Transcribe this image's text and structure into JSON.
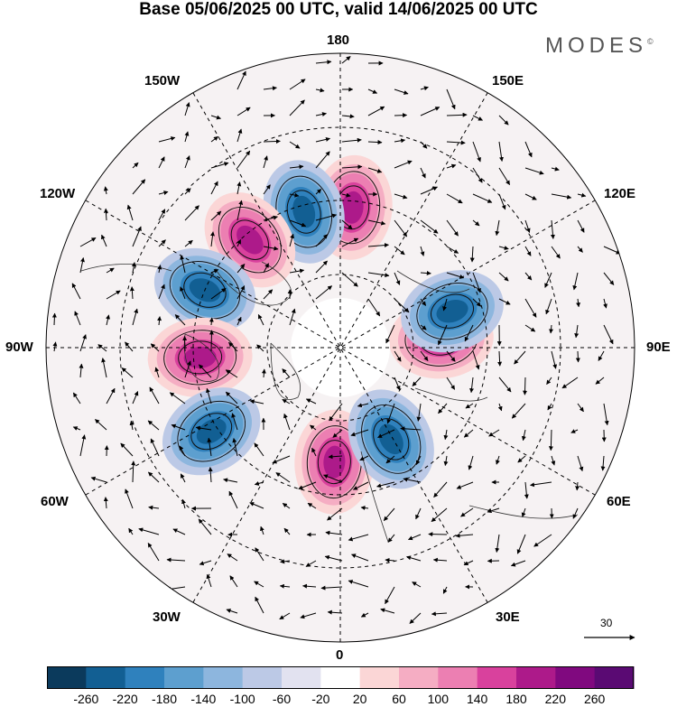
{
  "title": "Base 05/06/2025 00 UTC, valid 14/06/2025 00 UTC",
  "brand": "MODES",
  "brand_mark": "©",
  "longitude_labels": {
    "top": "180",
    "top_right": "150E",
    "right_upper": "120E",
    "right": "90E",
    "right_lower": "60E",
    "bottom_right": "30E",
    "bottom": "0",
    "bottom_left": "30W",
    "left_lower": "60W",
    "left": "90W",
    "left_upper": "120W",
    "top_left": "150W"
  },
  "reference_vector": {
    "label": "30"
  },
  "colorbar": {
    "ticks": [
      "-260",
      "-220",
      "-180",
      "-140",
      "-100",
      "-60",
      "-20",
      "20",
      "60",
      "100",
      "140",
      "180",
      "220",
      "260"
    ],
    "colors": [
      "#0b3a5c",
      "#125f93",
      "#2f81bd",
      "#5d9fcf",
      "#8db6de",
      "#bcc9e6",
      "#e2e2f0",
      "#ffffff",
      "#fbd6d6",
      "#f5adc3",
      "#ec7fb2",
      "#d9419d",
      "#ad1a8a",
      "#80097f",
      "#5a0a73"
    ]
  },
  "anomaly_centers": [
    {
      "sign": "positive",
      "lon": 175,
      "lat": 47
    },
    {
      "sign": "negative",
      "lon": -165,
      "lat": 47
    },
    {
      "sign": "positive",
      "lon": -140,
      "lat": 47
    },
    {
      "sign": "negative",
      "lon": -113,
      "lat": 45
    },
    {
      "sign": "positive",
      "lon": -86,
      "lat": 47
    },
    {
      "sign": "negative",
      "lon": -57,
      "lat": 43
    },
    {
      "sign": "positive",
      "lon": -3,
      "lat": 55
    },
    {
      "sign": "negative",
      "lon": 29,
      "lat": 58
    },
    {
      "sign": "positive",
      "lon": 95,
      "lat": 59
    },
    {
      "sign": "negative",
      "lon": 108,
      "lat": 54
    }
  ]
}
